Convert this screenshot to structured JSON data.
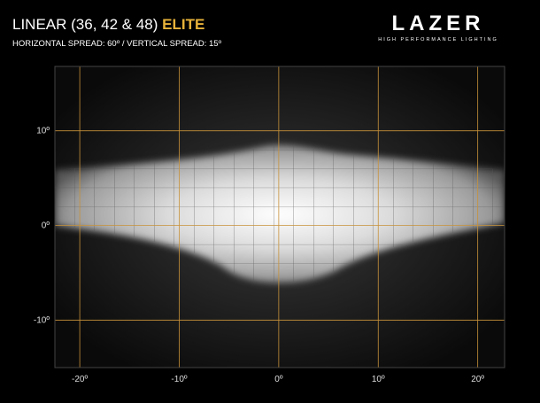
{
  "header": {
    "title": "LINEAR (36, 42 & 48)",
    "title_highlight": "ELITE",
    "subtitle": "HORIZONTAL SPREAD: 60º / VERTICAL SPREAD: 15º"
  },
  "logo": {
    "name": "LAZER",
    "tagline": "HIGH PERFORMANCE LIGHTING"
  },
  "plot": {
    "xlim": [
      -22.5,
      22.7
    ],
    "ylim": [
      -15,
      16.8
    ],
    "xticks": [
      {
        "value": -20,
        "label": "-20º"
      },
      {
        "value": -10,
        "label": "-10º"
      },
      {
        "value": 0,
        "label": "0º"
      },
      {
        "value": 10,
        "label": "10º"
      },
      {
        "value": 20,
        "label": "20º"
      }
    ],
    "yticks": [
      {
        "value": 10,
        "label": "10º"
      },
      {
        "value": 0,
        "label": "0º"
      },
      {
        "value": -10,
        "label": "-10º"
      }
    ],
    "grid_color": "#c8923a"
  }
}
